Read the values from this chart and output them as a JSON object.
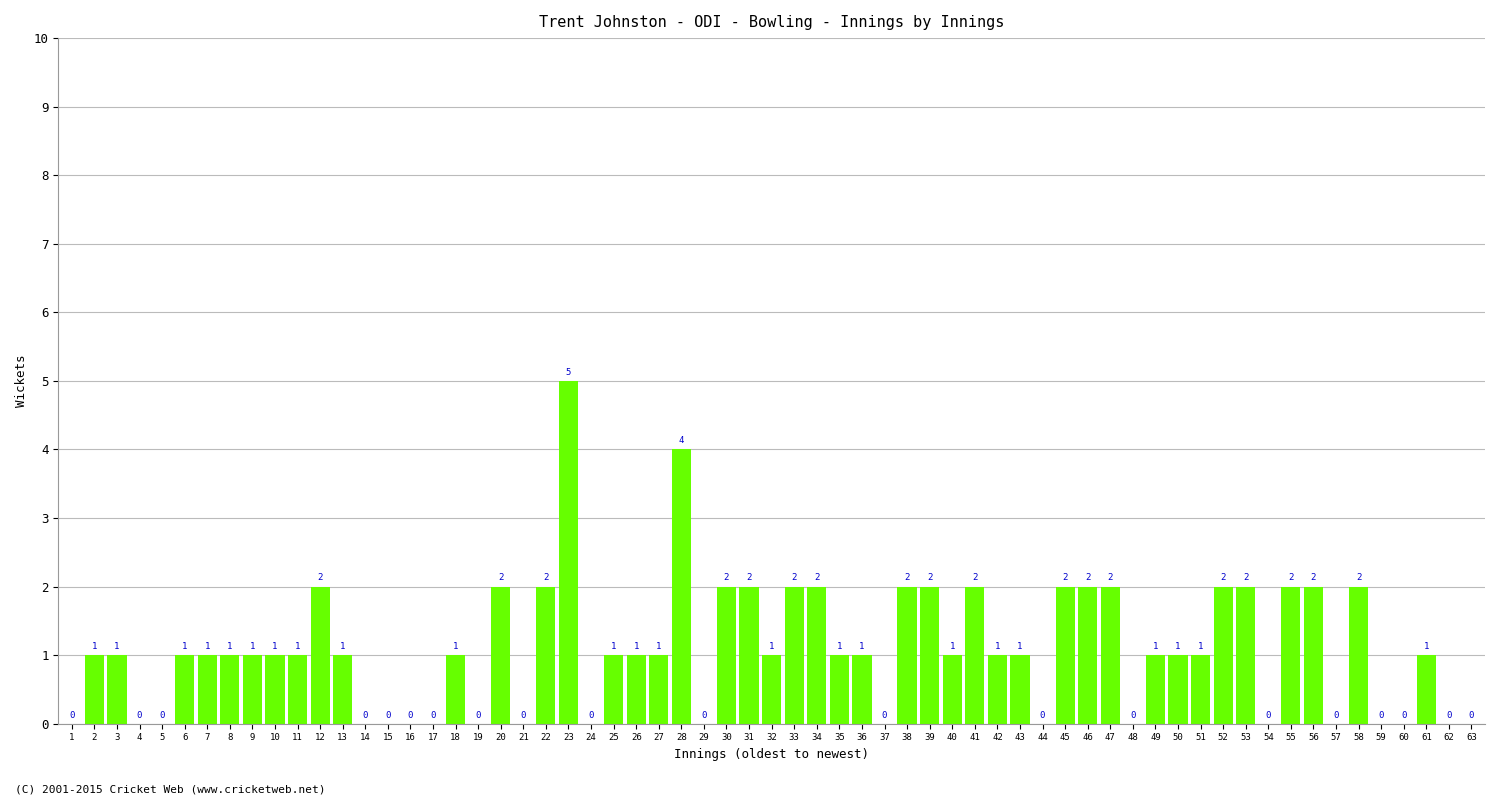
{
  "title": "Trent Johnston - ODI - Bowling - Innings by Innings",
  "xlabel": "Innings (oldest to newest)",
  "ylabel": "Wickets",
  "bar_color": "#66ff00",
  "label_color": "#0000cc",
  "background_color": "#ffffff",
  "grid_color": "#bbbbbb",
  "ylim": [
    0,
    10
  ],
  "yticks": [
    0,
    1,
    2,
    3,
    4,
    5,
    6,
    7,
    8,
    9,
    10
  ],
  "footer": "(C) 2001-2015 Cricket Web (www.cricketweb.net)",
  "innings": [
    1,
    2,
    3,
    4,
    5,
    6,
    7,
    8,
    9,
    10,
    11,
    12,
    13,
    14,
    15,
    16,
    17,
    18,
    19,
    20,
    21,
    22,
    23,
    24,
    25,
    26,
    27,
    28,
    29,
    30,
    31,
    32,
    33,
    34,
    35,
    36,
    37,
    38,
    39,
    40,
    41,
    42,
    43,
    44,
    45,
    46,
    47,
    48,
    49,
    50,
    51,
    52,
    53,
    54,
    55,
    56,
    57,
    58,
    59,
    60,
    61,
    62,
    63
  ],
  "wickets": [
    0,
    1,
    1,
    0,
    0,
    1,
    1,
    1,
    1,
    1,
    1,
    2,
    1,
    0,
    0,
    0,
    0,
    1,
    0,
    2,
    0,
    2,
    5,
    0,
    1,
    1,
    1,
    4,
    0,
    2,
    2,
    1,
    2,
    2,
    1,
    1,
    0,
    2,
    2,
    1,
    2,
    1,
    1,
    0,
    2,
    2,
    2,
    0,
    1,
    1,
    1,
    2,
    2,
    0,
    2,
    2,
    0,
    2,
    0,
    0,
    1,
    0,
    0
  ]
}
